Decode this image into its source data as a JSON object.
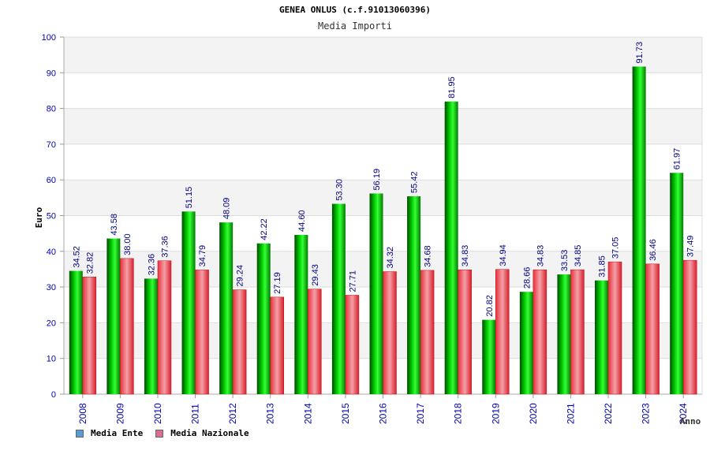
{
  "header": {
    "title": "GENEA ONLUS (c.f.91013060396)",
    "subtitle": "Media Importi"
  },
  "legend": {
    "items": [
      {
        "label": "Media Ente",
        "color": "#5b9bd5"
      },
      {
        "label": "Media Nazionale",
        "color": "#d87093"
      }
    ]
  },
  "colors": {
    "ente_bar": "#00b000",
    "nazionale_bar": "#e8303a",
    "label_text": "#000080",
    "axis_text": "#0000aa"
  },
  "chart_data": {
    "type": "bar",
    "title": "GENEA ONLUS (c.f.91013060396)",
    "subtitle": "Media Importi",
    "xlabel": "Anno",
    "ylabel": "Euro",
    "ylim": [
      0,
      100
    ],
    "yticks": [
      0,
      10,
      20,
      30,
      40,
      50,
      60,
      70,
      80,
      90,
      100
    ],
    "grid": true,
    "legend_position": "bottom-left",
    "categories": [
      "2008",
      "2009",
      "2010",
      "2011",
      "2012",
      "2013",
      "2014",
      "2015",
      "2016",
      "2017",
      "2018",
      "2019",
      "2020",
      "2021",
      "2022",
      "2023",
      "2024"
    ],
    "series": [
      {
        "name": "Media Ente",
        "values": [
          34.52,
          43.58,
          32.36,
          51.15,
          48.09,
          42.22,
          44.6,
          53.3,
          56.19,
          55.42,
          81.95,
          20.82,
          28.66,
          33.53,
          31.85,
          91.73,
          61.97
        ],
        "labels": [
          "34.52",
          "43.58",
          "32.36",
          "51.15",
          "48.09",
          "42.22",
          "44.60",
          "53.30",
          "56.19",
          "55.42",
          "81.95",
          "20.82",
          "28.66",
          "33.53",
          "31.85",
          "91.73",
          "61.97"
        ]
      },
      {
        "name": "Media Nazionale",
        "values": [
          32.82,
          38.0,
          37.36,
          34.79,
          29.24,
          27.19,
          29.43,
          27.71,
          34.32,
          34.68,
          34.83,
          34.94,
          34.83,
          34.85,
          37.05,
          36.46,
          37.49
        ],
        "labels": [
          "32.82",
          "38.00",
          "37.36",
          "34.79",
          "29.24",
          "27.19",
          "29.43",
          "27.71",
          "34.32",
          "34.68",
          "34.83",
          "34.94",
          "34.83",
          "34.85",
          "37.05",
          "36.46",
          "37.49"
        ]
      }
    ]
  }
}
